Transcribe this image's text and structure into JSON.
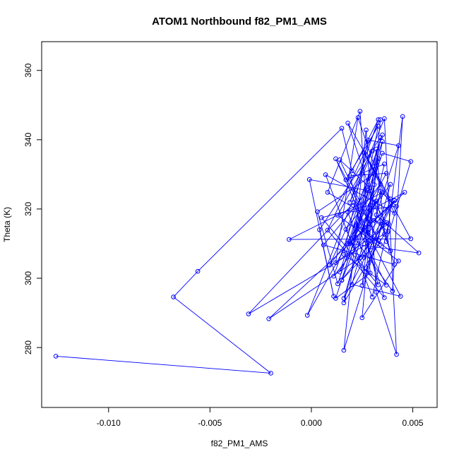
{
  "chart_data": {
    "type": "scatter",
    "title": "ATOM1 Northbound f82_PM1_AMS",
    "xlabel": "f82_PM1_AMS",
    "ylabel": "Theta (K)",
    "xlim": [
      -0.0133,
      0.0062
    ],
    "ylim": [
      262.7,
      368.3
    ],
    "xticks": [
      -0.01,
      -0.005,
      0.0,
      0.005
    ],
    "xtick_labels": [
      "-0.010",
      "-0.005",
      "0.000",
      "0.005"
    ],
    "yticks": [
      280,
      300,
      320,
      340,
      360
    ],
    "ytick_labels": [
      "280",
      "300",
      "320",
      "340",
      "360"
    ],
    "grid": false,
    "legend": "none",
    "line_color": "#0000ff",
    "marker": "open-circle",
    "series": [
      {
        "x": [
          -0.0126,
          -0.002,
          -0.0068,
          -0.0056,
          0.0015,
          0.002,
          0.0033,
          0.0019,
          0.0036,
          0.0042,
          0.0032,
          0.0027,
          0.0016,
          0.0035,
          0.0008,
          0.0024,
          0.0029,
          0.0012,
          0.0035,
          0.0049,
          0.0037,
          0.0045,
          0.004,
          0.0021,
          0.0031,
          0.0003,
          0.0013,
          0.0028,
          -0.0001,
          0.0011,
          0.0004,
          0.0034,
          0.0025,
          0.0039,
          0.0018,
          0.0041,
          0.0006,
          0.0029,
          0.0014,
          0.0033,
          0.0022,
          0.0037,
          0.0016,
          0.0028,
          0.0043,
          0.0032,
          0.0053,
          0.0019,
          0.0035,
          -0.0011,
          0.0049,
          0.0026,
          0.0041,
          0.0007,
          0.003,
          0.0038,
          0.0012,
          0.0023,
          0.0034,
          0.0017,
          0.0027,
          0.0039,
          0.0009,
          0.0033,
          0.0015,
          0.0029,
          0.0046,
          -0.0021,
          0.0024,
          0.0041,
          0.0011,
          0.0035,
          0.0018,
          0.0031,
          0.0038,
          -0.0031,
          0.0021,
          0.0036,
          0.0008,
          0.0034,
          0.0025,
          0.0043,
          0.0013,
          0.003,
          -0.0002,
          0.0037,
          0.0019,
          0.0033,
          0.0005,
          0.0029,
          0.0016,
          0.0041,
          0.0027,
          0.0035,
          0.0014,
          0.0032,
          0.0039,
          0.0022,
          0.0034,
          0.0012,
          0.0028,
          0.0036,
          0.0017,
          0.0033,
          0.0024,
          0.0044,
          0.002,
          0.0031,
          0.0037,
          0.0015,
          0.0029,
          0.0034,
          0.0042,
          0.0018,
          0.0026,
          0.0032,
          0.0036,
          0.0016,
          0.0031
        ],
        "y": [
          277.5,
          272.6,
          294.6,
          302.0,
          343.3,
          331.0,
          345.8,
          321.9,
          346.1,
          278.0,
          296.0,
          342.8,
          279.2,
          315.5,
          324.8,
          348.2,
          301.5,
          294.2,
          336.1,
          333.7,
          310.6,
          346.7,
          296.3,
          311.8,
          330.1,
          319.2,
          298.4,
          325.3,
          328.5,
          294.8,
          314.0,
          340.6,
          297.9,
          322.9,
          344.8,
          304.0,
          309.6,
          326.1,
          334.2,
          311.0,
          315.6,
          298.0,
          306.9,
          339.9,
          338.3,
          318.3,
          307.3,
          310.0,
          324.7,
          311.2,
          311.4,
          336.2,
          318.8,
          329.9,
          294.6,
          315.7,
          304.5,
          346.4,
          327.2,
          314.1,
          301.9,
          327.1,
          303.8,
          334.5,
          299.4,
          319.6,
          324.8,
          288.3,
          305.9,
          322.5,
          300.6,
          341.4,
          309.9,
          316.7,
          313.5,
          289.7,
          321.8,
          294.4,
          313.9,
          345.8,
          288.6,
          305.0,
          318.2,
          336.7,
          289.3,
          330.3,
          329.6,
          298.1,
          317.5,
          321.1,
          294.2,
          322.4,
          314.6,
          339.5,
          301.8,
          322.3,
          307.9,
          315.2,
          309.8,
          334.5,
          313.3,
          333.0,
          328.4,
          343.9,
          317.2,
          294.8,
          298.2,
          321.9,
          316.1,
          299.5,
          308.2,
          325.1,
          320.8,
          319.1,
          306.0,
          337.3,
          312.7,
          292.9,
          327.0
        ]
      }
    ]
  }
}
